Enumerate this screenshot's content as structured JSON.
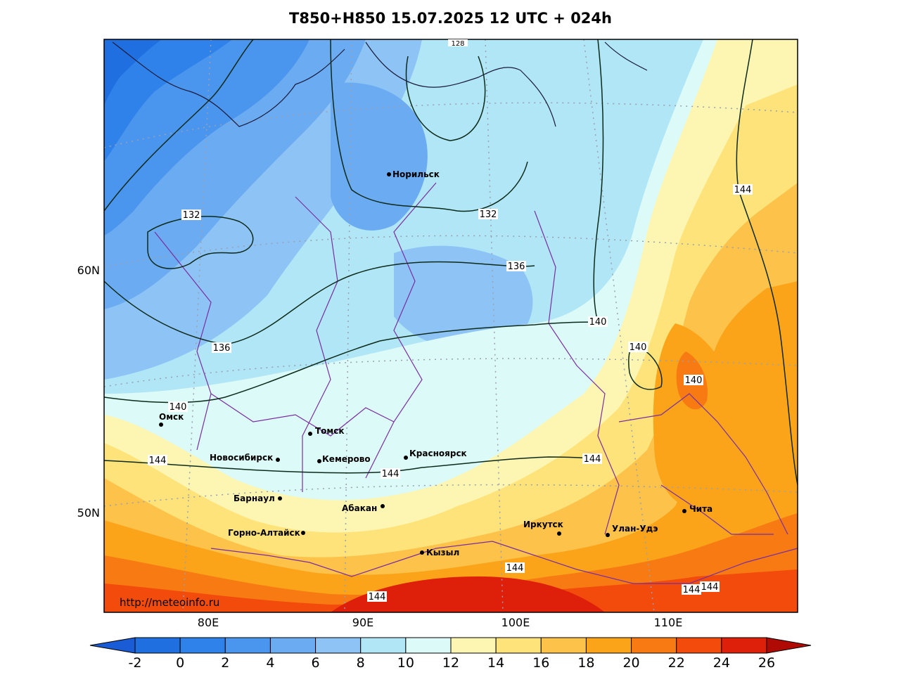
{
  "title": "T850+H850 15.07.2025 12 UTC + 024h",
  "watermark": "http://meteoinfo.ru",
  "lat_labels": [
    "60N",
    "50N"
  ],
  "lon_labels": [
    "80E",
    "90E",
    "100E",
    "110E"
  ],
  "colorbar": {
    "ticks": [
      "-2",
      "0",
      "2",
      "4",
      "6",
      "8",
      "10",
      "12",
      "14",
      "16",
      "18",
      "20",
      "22",
      "24",
      "26"
    ],
    "colors": [
      "#1f6fe0",
      "#2e82ea",
      "#4a95ee",
      "#6aabf2",
      "#8ec4f5",
      "#b0e6f5",
      "#dcfaf8",
      "#fdf6b2",
      "#fde37a",
      "#fcc24a",
      "#fba41a",
      "#f77b12",
      "#f24b0c",
      "#de200a",
      "#b90a05"
    ],
    "low_end_color": "#1a5cd6",
    "high_end_color": "#b00a04"
  },
  "cities": [
    {
      "name": "Норильск"
    },
    {
      "name": "Омск"
    },
    {
      "name": "Томск"
    },
    {
      "name": "Новосибирск"
    },
    {
      "name": "Кемерово"
    },
    {
      "name": "Красноярск"
    },
    {
      "name": "Барнаул"
    },
    {
      "name": "Абакан"
    },
    {
      "name": "Горно-Алтайск"
    },
    {
      "name": "Иркутск"
    },
    {
      "name": "Улан-Удэ"
    },
    {
      "name": "Чита"
    },
    {
      "name": "Кызыл"
    }
  ],
  "contour_labels": [
    "132",
    "132",
    "136",
    "136",
    "140",
    "140",
    "140",
    "140",
    "144",
    "144",
    "144",
    "144",
    "144",
    "144",
    "144",
    "144",
    "128"
  ]
}
